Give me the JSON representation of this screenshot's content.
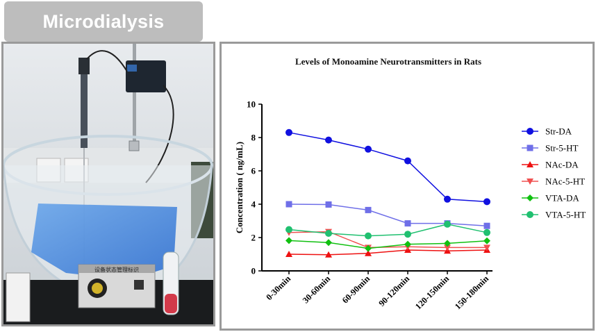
{
  "header": {
    "title": "Microdialysis"
  },
  "photo": {
    "label": "设备状态管理标识"
  },
  "chart_data": {
    "type": "line",
    "title": "Levels of Monoamine Neurotransmitters in Rats",
    "xlabel": "",
    "ylabel": "Concentration ( ng/mL)",
    "categories": [
      "0-30min",
      "30-60min",
      "60-90min",
      "90-120min",
      "120-150min",
      "150-180min"
    ],
    "ylim": [
      0,
      10
    ],
    "yticks": [
      0,
      2,
      4,
      6,
      8,
      10
    ],
    "legend_position": "right",
    "grid": false,
    "series": [
      {
        "name": "Str-DA",
        "values": [
          8.3,
          7.85,
          7.3,
          6.6,
          4.3,
          4.15
        ],
        "color": "#1010e0",
        "marker": "circle"
      },
      {
        "name": "Str-5-HT",
        "values": [
          4.0,
          3.98,
          3.65,
          2.85,
          2.85,
          2.7
        ],
        "color": "#6f6fe8",
        "marker": "square"
      },
      {
        "name": "NAc-DA",
        "values": [
          1.0,
          0.97,
          1.05,
          1.25,
          1.2,
          1.25
        ],
        "color": "#ee1111",
        "marker": "triangle-up"
      },
      {
        "name": "NAc-5-HT",
        "values": [
          2.3,
          2.35,
          1.4,
          1.45,
          1.4,
          1.4
        ],
        "color": "#f05050",
        "marker": "triangle-down"
      },
      {
        "name": "VTA-DA",
        "values": [
          1.82,
          1.7,
          1.35,
          1.6,
          1.65,
          1.8
        ],
        "color": "#10c010",
        "marker": "diamond"
      },
      {
        "name": "VTA-5-HT",
        "values": [
          2.48,
          2.25,
          2.1,
          2.2,
          2.8,
          2.3
        ],
        "color": "#20c070",
        "marker": "circle"
      }
    ]
  }
}
